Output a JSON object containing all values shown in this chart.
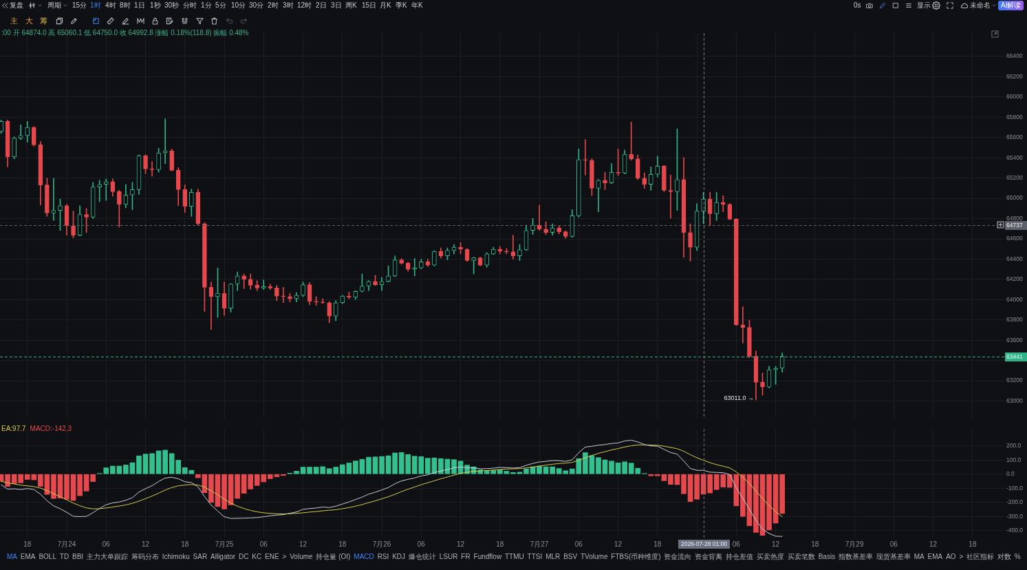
{
  "chart_data": [
    {
      "type": "other",
      "annotations": [
        "复盘",
        "周期",
        "15分",
        "1时",
        "4时",
        "8时",
        "1日",
        "1秒",
        "30秒",
        "分时",
        "1分",
        "5分",
        "10分",
        "30分",
        "2时",
        "3时",
        "12时",
        "2日",
        "3日",
        "周K",
        "15日",
        "月K",
        "季K",
        "年K",
        "0s",
        "显示",
        "未命名",
        "AI解读",
        "主",
        "大",
        "筹"
      ]
    },
    {
      "type": "candlestick",
      "x": [
        "2026-07-23T14:00",
        "2026-07-23T15:00",
        "2026-07-23T16:00",
        "2026-07-23T17:00",
        "2026-07-23T18:00",
        "2026-07-23T19:00",
        "2026-07-23T20:00",
        "2026-07-23T21:00",
        "2026-07-23T22:00",
        "2026-07-23T23:00",
        "2026-07-24T00:00",
        "2026-07-24T01:00",
        "2026-07-24T02:00",
        "2026-07-24T03:00",
        "2026-07-24T04:00",
        "2026-07-24T05:00",
        "2026-07-24T06:00",
        "2026-07-24T07:00",
        "2026-07-24T08:00",
        "2026-07-24T09:00",
        "2026-07-24T10:00",
        "2026-07-24T11:00",
        "2026-07-24T12:00",
        "2026-07-24T13:00",
        "2026-07-24T14:00",
        "2026-07-24T15:00",
        "2026-07-24T16:00",
        "2026-07-24T17:00",
        "2026-07-24T18:00",
        "2026-07-24T19:00",
        "2026-07-24T20:00",
        "2026-07-24T21:00",
        "2026-07-24T22:00",
        "2026-07-24T23:00",
        "2026-07-25T00:00",
        "2026-07-25T01:00",
        "2026-07-25T02:00",
        "2026-07-25T03:00",
        "2026-07-25T04:00",
        "2026-07-25T05:00",
        "2026-07-25T06:00",
        "2026-07-25T07:00",
        "2026-07-25T08:00",
        "2026-07-25T09:00",
        "2026-07-25T10:00",
        "2026-07-25T11:00",
        "2026-07-25T12:00",
        "2026-07-25T13:00",
        "2026-07-25T14:00",
        "2026-07-25T15:00",
        "2026-07-25T16:00",
        "2026-07-25T17:00",
        "2026-07-25T18:00",
        "2026-07-25T19:00",
        "2026-07-25T20:00",
        "2026-07-25T21:00",
        "2026-07-25T22:00",
        "2026-07-25T23:00",
        "2026-07-26T00:00",
        "2026-07-26T01:00",
        "2026-07-26T02:00",
        "2026-07-26T03:00",
        "2026-07-26T04:00",
        "2026-07-26T05:00",
        "2026-07-26T06:00",
        "2026-07-26T07:00",
        "2026-07-26T08:00",
        "2026-07-26T09:00",
        "2026-07-26T10:00",
        "2026-07-26T11:00",
        "2026-07-26T12:00",
        "2026-07-26T13:00",
        "2026-07-26T14:00",
        "2026-07-26T15:00",
        "2026-07-26T16:00",
        "2026-07-26T17:00",
        "2026-07-26T18:00",
        "2026-07-26T19:00",
        "2026-07-26T20:00",
        "2026-07-26T21:00",
        "2026-07-26T22:00",
        "2026-07-26T23:00",
        "2026-07-27T00:00",
        "2026-07-27T01:00",
        "2026-07-27T02:00",
        "2026-07-27T03:00",
        "2026-07-27T04:00",
        "2026-07-27T05:00",
        "2026-07-27T06:00",
        "2026-07-27T07:00",
        "2026-07-27T08:00",
        "2026-07-27T09:00",
        "2026-07-27T10:00",
        "2026-07-27T11:00",
        "2026-07-27T12:00",
        "2026-07-27T13:00",
        "2026-07-27T14:00",
        "2026-07-27T15:00",
        "2026-07-27T16:00",
        "2026-07-27T17:00",
        "2026-07-27T18:00",
        "2026-07-27T19:00",
        "2026-07-27T20:00",
        "2026-07-27T21:00",
        "2026-07-27T22:00",
        "2026-07-27T23:00",
        "2026-07-28T00:00",
        "2026-07-28T01:00",
        "2026-07-28T02:00",
        "2026-07-28T03:00",
        "2026-07-28T04:00",
        "2026-07-28T05:00",
        "2026-07-28T06:00",
        "2026-07-28T07:00",
        "2026-07-28T08:00",
        "2026-07-28T09:00",
        "2026-07-28T10:00",
        "2026-07-28T11:00",
        "2026-07-28T12:00",
        "2026-07-28T13:00"
      ],
      "ohlc": [
        [
          65660,
          65772,
          65640,
          65759
        ],
        [
          65759,
          65772,
          65310,
          65409
        ],
        [
          65409,
          65607,
          65389,
          65594
        ],
        [
          65594,
          65726,
          65580,
          65620
        ],
        [
          65620,
          65759,
          65554,
          65700
        ],
        [
          65700,
          65710,
          65515,
          65528
        ],
        [
          65528,
          65561,
          64934,
          65132
        ],
        [
          65132,
          65198,
          64822,
          64855
        ],
        [
          64855,
          65198,
          64782,
          64881
        ],
        [
          64881,
          64993,
          64683,
          64927
        ],
        [
          64927,
          64940,
          64637,
          64729
        ],
        [
          64729,
          64874,
          64610,
          64637
        ],
        [
          64637,
          64927,
          64630,
          64841
        ],
        [
          64841,
          64901,
          64663,
          64815
        ],
        [
          64815,
          65158,
          64800,
          65112
        ],
        [
          65112,
          65178,
          64967,
          65138
        ],
        [
          65138,
          65191,
          64980,
          65165
        ],
        [
          65165,
          65191,
          65020,
          65066
        ],
        [
          65066,
          65080,
          64716,
          64940
        ],
        [
          64940,
          65138,
          64907,
          65033
        ],
        [
          65033,
          65158,
          64888,
          65086
        ],
        [
          65086,
          65429,
          65039,
          65422
        ],
        [
          65422,
          65430,
          65244,
          65290
        ],
        [
          65290,
          65363,
          65218,
          65283
        ],
        [
          65283,
          65495,
          65257,
          65449
        ],
        [
          65449,
          65785,
          65343,
          65468
        ],
        [
          65468,
          65488,
          65270,
          65277
        ],
        [
          65277,
          65303,
          64927,
          65086
        ],
        [
          65086,
          65132,
          64861,
          64921
        ],
        [
          64921,
          65092,
          64822,
          65059
        ],
        [
          65059,
          65092,
          64736,
          64749
        ],
        [
          64749,
          64760,
          63884,
          64122
        ],
        [
          64122,
          64175,
          63706,
          64030
        ],
        [
          64030,
          64313,
          63825,
          64063
        ],
        [
          64063,
          64175,
          63845,
          63917
        ],
        [
          63917,
          64160,
          63878,
          64155
        ],
        [
          64155,
          64274,
          64089,
          64234
        ],
        [
          64234,
          64254,
          64109,
          64201
        ],
        [
          64201,
          64254,
          64102,
          64142
        ],
        [
          64142,
          64188,
          64089,
          64115
        ],
        [
          64115,
          64195,
          64102,
          64129
        ],
        [
          64129,
          64155,
          64102,
          64115
        ],
        [
          64115,
          64142,
          63990,
          64036
        ],
        [
          64036,
          64122,
          63970,
          64030
        ],
        [
          64030,
          64063,
          63977,
          64010
        ],
        [
          64010,
          64069,
          63977,
          64043
        ],
        [
          64043,
          64175,
          64030,
          64148
        ],
        [
          64148,
          64168,
          63950,
          63983
        ],
        [
          63983,
          64030,
          63944,
          63977
        ],
        [
          63977,
          64010,
          63964,
          63970
        ],
        [
          63970,
          63980,
          63772,
          63838
        ],
        [
          63838,
          63990,
          63792,
          63970
        ],
        [
          63970,
          64043,
          63960,
          64036
        ],
        [
          64036,
          64076,
          64010,
          64023
        ],
        [
          64023,
          64089,
          64003,
          64082
        ],
        [
          64082,
          64254,
          64075,
          64135
        ],
        [
          64135,
          64188,
          64089,
          64181
        ],
        [
          64181,
          64241,
          64140,
          64148
        ],
        [
          64148,
          64221,
          64089,
          64181
        ],
        [
          64181,
          64333,
          64175,
          64234
        ],
        [
          64234,
          64432,
          64225,
          64393
        ],
        [
          64393,
          64406,
          64350,
          64360
        ],
        [
          64360,
          64370,
          64280,
          64300
        ],
        [
          64300,
          64406,
          64234,
          64313
        ],
        [
          64313,
          64399,
          64305,
          64373
        ],
        [
          64373,
          64399,
          64327,
          64340
        ],
        [
          64340,
          64485,
          64333,
          64478
        ],
        [
          64478,
          64511,
          64412,
          64432
        ],
        [
          64432,
          64511,
          64393,
          64485
        ],
        [
          64485,
          64544,
          64452,
          64518
        ],
        [
          64518,
          64564,
          64452,
          64498
        ],
        [
          64498,
          64505,
          64379,
          64386
        ],
        [
          64386,
          64419,
          64254,
          64412
        ],
        [
          64412,
          64420,
          64333,
          64340
        ],
        [
          64340,
          64465,
          64320,
          64452
        ],
        [
          64452,
          64518,
          64445,
          64498
        ],
        [
          64498,
          64525,
          64452,
          64478
        ],
        [
          64478,
          64505,
          64452,
          64472
        ],
        [
          64472,
          64637,
          64399,
          64432
        ],
        [
          64432,
          64544,
          64386,
          64492
        ],
        [
          64492,
          64736,
          64485,
          64683
        ],
        [
          64683,
          64802,
          64643,
          64736
        ],
        [
          64736,
          64934,
          64683,
          64696
        ],
        [
          64696,
          64769,
          64643,
          64663
        ],
        [
          64663,
          64749,
          64637,
          64709
        ],
        [
          64709,
          64729,
          64650,
          64670
        ],
        [
          64670,
          64680,
          64604,
          64624
        ],
        [
          64624,
          64888,
          64615,
          64828
        ],
        [
          64828,
          65488,
          64815,
          65383
        ],
        [
          65383,
          65581,
          65231,
          65376
        ],
        [
          65376,
          65390,
          65026,
          65099
        ],
        [
          65099,
          65185,
          64868,
          65178
        ],
        [
          65178,
          65257,
          65086,
          65152
        ],
        [
          65152,
          65343,
          65145,
          65257
        ],
        [
          65257,
          65488,
          65224,
          65250
        ],
        [
          65250,
          65475,
          65240,
          65435
        ],
        [
          65435,
          65752,
          65376,
          65389
        ],
        [
          65389,
          65429,
          65185,
          65198
        ],
        [
          65198,
          65251,
          65099,
          65138
        ],
        [
          65138,
          65310,
          65079,
          65237
        ],
        [
          65237,
          65416,
          65211,
          65317
        ],
        [
          65317,
          65325,
          65066,
          65079
        ],
        [
          65079,
          65231,
          64802,
          65066
        ],
        [
          65066,
          65686,
          64881,
          65185
        ],
        [
          65185,
          65402,
          64419,
          64663
        ],
        [
          64663,
          64749,
          64379,
          64518
        ],
        [
          64518,
          64947,
          64485,
          64874
        ],
        [
          64874.0,
          65060.1,
          64750.0,
          64992.8
        ],
        [
          64992.8,
          65059,
          64729,
          64848
        ],
        [
          64848,
          65059,
          64782,
          64960
        ],
        [
          64960,
          65026,
          64868,
          64940
        ],
        [
          64940,
          64950,
          64789,
          64795
        ],
        [
          64795,
          64800,
          63746,
          63752
        ],
        [
          63752,
          63931,
          63574,
          63726
        ],
        [
          63726,
          63799,
          63430,
          63442
        ],
        [
          63442,
          63495,
          63011,
          63185
        ],
        [
          63185,
          63277,
          63059,
          63139
        ],
        [
          63139,
          63343,
          63130,
          63310
        ],
        [
          63310,
          63343,
          63165,
          63323
        ],
        [
          63323,
          63475,
          63284,
          63441
        ]
      ],
      "colors": [
        "#2fb389",
        "#e5484d",
        "#2fb389",
        "#2fb389",
        "#2fb389",
        "#e5484d",
        "#e5484d",
        "#e5484d",
        "#2fb389",
        "#2fb389",
        "#e5484d",
        "#e5484d",
        "#2fb389",
        "#e5484d",
        "#2fb389",
        "#2fb389",
        "#2fb389",
        "#e5484d",
        "#e5484d",
        "#2fb389",
        "#2fb389",
        "#2fb389",
        "#e5484d",
        "#e5484d",
        "#2fb389",
        "#2fb389",
        "#e5484d",
        "#e5484d",
        "#e5484d",
        "#2fb389",
        "#e5484d",
        "#e5484d",
        "#e5484d",
        "#2fb389",
        "#e5484d",
        "#2fb389",
        "#2fb389",
        "#e5484d",
        "#e5484d",
        "#e5484d",
        "#2fb389",
        "#e5484d",
        "#e5484d",
        "#e5484d",
        "#e5484d",
        "#2fb389",
        "#2fb389",
        "#e5484d",
        "#e5484d",
        "#e5484d",
        "#e5484d",
        "#2fb389",
        "#2fb389",
        "#e5484d",
        "#2fb389",
        "#2fb389",
        "#2fb389",
        "#e5484d",
        "#2fb389",
        "#2fb389",
        "#2fb389",
        "#e5484d",
        "#e5484d",
        "#2fb389",
        "#2fb389",
        "#e5484d",
        "#2fb389",
        "#e5484d",
        "#2fb389",
        "#2fb389",
        "#e5484d",
        "#e5484d",
        "#2fb389",
        "#e5484d",
        "#2fb389",
        "#2fb389",
        "#e5484d",
        "#e5484d",
        "#e5484d",
        "#2fb389",
        "#2fb389",
        "#2fb389",
        "#e5484d",
        "#e5484d",
        "#2fb389",
        "#e5484d",
        "#e5484d",
        "#2fb389",
        "#2fb389",
        "#e5484d",
        "#e5484d",
        "#2fb389",
        "#e5484d",
        "#2fb389",
        "#e5484d",
        "#2fb389",
        "#e5484d",
        "#e5484d",
        "#e5484d",
        "#2fb389",
        "#2fb389",
        "#e5484d",
        "#e5484d",
        "#2fb389",
        "#e5484d",
        "#e5484d",
        "#2fb389",
        "#2fb389",
        "#e5484d",
        "#2fb389",
        "#e5484d",
        "#e5484d",
        "#e5484d",
        "#e5484d",
        "#e5484d",
        "#e5484d",
        "#e5484d",
        "#2fb389",
        "#2fb389",
        "#2fb389"
      ],
      "xlim": [
        "2026-07-23T13:50",
        "2026-07-29T22:50"
      ],
      "xticks": [
        {
          "value": "2026-07-23T18:00",
          "label": null
        },
        {
          "value": "2026-07-24T00:00",
          "label": null
        },
        {
          "value": "2026-07-24T06:00",
          "label": null
        },
        {
          "value": "2026-07-24T12:00",
          "label": null
        },
        {
          "value": "2026-07-24T18:00",
          "label": null
        },
        {
          "value": "2026-07-25T00:00",
          "label": null
        },
        {
          "value": "2026-07-25T06:00",
          "label": null
        },
        {
          "value": "2026-07-25T12:00",
          "label": null
        },
        {
          "value": "2026-07-25T18:00",
          "label": null
        },
        {
          "value": "2026-07-26T00:00",
          "label": null
        },
        {
          "value": "2026-07-26T06:00",
          "label": null
        },
        {
          "value": "2026-07-26T12:00",
          "label": null
        },
        {
          "value": "2026-07-26T18:00",
          "label": null
        },
        {
          "value": "2026-07-27T00:00",
          "label": null
        },
        {
          "value": "2026-07-27T06:00",
          "label": null
        },
        {
          "value": "2026-07-27T12:00",
          "label": null
        },
        {
          "value": "2026-07-27T18:00",
          "label": null
        },
        {
          "value": "2026-07-28T00:00",
          "label": null
        },
        {
          "value": "2026-07-28T06:00",
          "label": null
        },
        {
          "value": "2026-07-28T12:00",
          "label": null
        },
        {
          "value": "2026-07-28T18:00",
          "label": null
        },
        {
          "value": "2026-07-29T00:00",
          "label": null
        },
        {
          "value": "2026-07-29T06:00",
          "label": null
        },
        {
          "value": "2026-07-29T12:00",
          "label": null
        },
        {
          "value": "2026-07-29T18:00",
          "label": null
        }
      ],
      "ylim": [
        62835,
        66630
      ],
      "yticks": [
        63000,
        63200,
        {
          "value": 63400,
          "label": null
        },
        63600,
        63800,
        64000,
        64200,
        64400,
        64600,
        64800,
        65000,
        65200,
        65400,
        65600,
        65800,
        66000,
        66200,
        66400
      ],
      "grid": true,
      "tick_labels": "y",
      "ref_lines": [
        {
          "axis": "y",
          "value": 64737,
          "label": "64737",
          "color": "#5d616b",
          "line_style": "dashed"
        },
        {
          "axis": "y",
          "value": 63441,
          "label": "63441",
          "color": "#2fb389",
          "line_style": "dashed"
        },
        {
          "axis": "x",
          "value": "2026-07-28T01:00",
          "color": "#7d8089",
          "line_style": "dashed"
        }
      ],
      "annotations": [
        ":00 开 64874.0 高 65060.1 低 64750.0 收 64992.8 涨幅 0.18%(118.8) 振幅 0.48%",
        {
          "text": "63011.0 →",
          "x": "2026-07-28T09:00",
          "y": 63011
        }
      ]
    },
    {
      "type": "bar",
      "x": [
        "2026-07-23T14:00",
        "2026-07-23T15:00",
        "2026-07-23T16:00",
        "2026-07-23T17:00",
        "2026-07-23T18:00",
        "2026-07-23T19:00",
        "2026-07-23T20:00",
        "2026-07-23T21:00",
        "2026-07-23T22:00",
        "2026-07-23T23:00",
        "2026-07-24T00:00",
        "2026-07-24T01:00",
        "2026-07-24T02:00",
        "2026-07-24T03:00",
        "2026-07-24T04:00",
        "2026-07-24T05:00",
        "2026-07-24T06:00",
        "2026-07-24T07:00",
        "2026-07-24T08:00",
        "2026-07-24T09:00",
        "2026-07-24T10:00",
        "2026-07-24T11:00",
        "2026-07-24T12:00",
        "2026-07-24T13:00",
        "2026-07-24T14:00",
        "2026-07-24T15:00",
        "2026-07-24T16:00",
        "2026-07-24T17:00",
        "2026-07-24T18:00",
        "2026-07-24T19:00",
        "2026-07-24T20:00",
        "2026-07-24T21:00",
        "2026-07-24T22:00",
        "2026-07-24T23:00",
        "2026-07-25T00:00",
        "2026-07-25T01:00",
        "2026-07-25T02:00",
        "2026-07-25T03:00",
        "2026-07-25T04:00",
        "2026-07-25T05:00",
        "2026-07-25T06:00",
        "2026-07-25T07:00",
        "2026-07-25T08:00",
        "2026-07-25T09:00",
        "2026-07-25T10:00",
        "2026-07-25T11:00",
        "2026-07-25T12:00",
        "2026-07-25T13:00",
        "2026-07-25T14:00",
        "2026-07-25T15:00",
        "2026-07-25T16:00",
        "2026-07-25T17:00",
        "2026-07-25T18:00",
        "2026-07-25T19:00",
        "2026-07-25T20:00",
        "2026-07-25T21:00",
        "2026-07-25T22:00",
        "2026-07-25T23:00",
        "2026-07-26T00:00",
        "2026-07-26T01:00",
        "2026-07-26T02:00",
        "2026-07-26T03:00",
        "2026-07-26T04:00",
        "2026-07-26T05:00",
        "2026-07-26T06:00",
        "2026-07-26T07:00",
        "2026-07-26T08:00",
        "2026-07-26T09:00",
        "2026-07-26T10:00",
        "2026-07-26T11:00",
        "2026-07-26T12:00",
        "2026-07-26T13:00",
        "2026-07-26T14:00",
        "2026-07-26T15:00",
        "2026-07-26T16:00",
        "2026-07-26T17:00",
        "2026-07-26T18:00",
        "2026-07-26T19:00",
        "2026-07-26T20:00",
        "2026-07-26T21:00",
        "2026-07-26T22:00",
        "2026-07-26T23:00",
        "2026-07-27T00:00",
        "2026-07-27T01:00",
        "2026-07-27T02:00",
        "2026-07-27T03:00",
        "2026-07-27T04:00",
        "2026-07-27T05:00",
        "2026-07-27T06:00",
        "2026-07-27T07:00",
        "2026-07-27T08:00",
        "2026-07-27T09:00",
        "2026-07-27T10:00",
        "2026-07-27T11:00",
        "2026-07-27T12:00",
        "2026-07-27T13:00",
        "2026-07-27T14:00",
        "2026-07-27T15:00",
        "2026-07-27T16:00",
        "2026-07-27T17:00",
        "2026-07-27T18:00",
        "2026-07-27T19:00",
        "2026-07-27T20:00",
        "2026-07-27T21:00",
        "2026-07-27T22:00",
        "2026-07-27T23:00",
        "2026-07-28T00:00",
        "2026-07-28T01:00",
        "2026-07-28T02:00",
        "2026-07-28T03:00",
        "2026-07-28T04:00",
        "2026-07-28T05:00",
        "2026-07-28T06:00",
        "2026-07-28T07:00",
        "2026-07-28T08:00",
        "2026-07-28T09:00",
        "2026-07-28T10:00",
        "2026-07-28T11:00",
        "2026-07-28T12:00",
        "2026-07-28T13:00"
      ],
      "series": [
        {
          "type": "bar",
          "colors": [
            "#e5484d",
            "#e5484d",
            "#e5484d",
            "#e5484d",
            "#e5484d",
            "#e5484d",
            "#e5484d",
            "#e5484d",
            "#e5484d",
            "#e5484d",
            "#e5484d",
            "#e5484d",
            "#e5484d",
            "#e5484d",
            "#e5484d",
            "#34c08e",
            "#34c08e",
            "#34c08e",
            "#34c08e",
            "#34c08e",
            "#34c08e",
            "#34c08e",
            "#34c08e",
            "#34c08e",
            "#34c08e",
            "#34c08e",
            "#34c08e",
            "#34c08e",
            "#34c08e",
            "#34c08e",
            "#e5484d",
            "#e5484d",
            "#e5484d",
            "#e5484d",
            "#e5484d",
            "#e5484d",
            "#e5484d",
            "#e5484d",
            "#e5484d",
            "#e5484d",
            "#e5484d",
            "#e5484d",
            "#e5484d",
            "#e5484d",
            "#34c08e",
            "#34c08e",
            "#34c08e",
            "#34c08e",
            "#34c08e",
            "#34c08e",
            "#34c08e",
            "#34c08e",
            "#34c08e",
            "#34c08e",
            "#34c08e",
            "#34c08e",
            "#34c08e",
            "#34c08e",
            "#34c08e",
            "#34c08e",
            "#34c08e",
            "#34c08e",
            "#34c08e",
            "#34c08e",
            "#34c08e",
            "#34c08e",
            "#34c08e",
            "#34c08e",
            "#34c08e",
            "#34c08e",
            "#34c08e",
            "#34c08e",
            "#34c08e",
            "#34c08e",
            "#34c08e",
            "#34c08e",
            "#34c08e",
            "#34c08e",
            "#34c08e",
            "#34c08e",
            "#34c08e",
            "#34c08e",
            "#34c08e",
            "#34c08e",
            "#34c08e",
            "#34c08e",
            "#34c08e",
            "#34c08e",
            "#34c08e",
            "#34c08e",
            "#34c08e",
            "#34c08e",
            "#34c08e",
            "#34c08e",
            "#34c08e",
            "#34c08e",
            "#34c08e",
            "#34c08e",
            "#34c08e",
            "#e5484d",
            "#e5484d",
            "#e5484d",
            "#e5484d",
            "#e5484d",
            "#e5484d",
            "#e5484d",
            "#e5484d",
            "#e5484d",
            "#e5484d",
            "#e5484d",
            "#e5484d",
            "#e5484d",
            "#e5484d",
            "#e5484d",
            "#e5484d",
            "#e5484d",
            "#e5484d",
            "#e5484d",
            "#e5484d",
            "#e5484d"
          ],
          "values": [
            -50,
            -87,
            -67,
            -62,
            -38,
            -41,
            -87,
            -144,
            -173,
            -170,
            -178,
            -187,
            -153,
            -120,
            -53,
            5,
            45,
            57,
            57,
            65,
            81,
            129,
            142,
            146,
            165,
            170,
            146,
            99,
            46,
            27,
            -26,
            -132,
            -201,
            -230,
            -247,
            -218,
            -172,
            -136,
            -106,
            -81,
            -55,
            -33,
            -19,
            -10,
            7,
            21,
            50,
            50,
            50,
            53,
            39,
            50,
            67,
            79,
            93,
            105,
            120,
            122,
            125,
            130,
            150,
            153,
            139,
            127,
            124,
            113,
            115,
            110,
            106,
            103,
            92,
            64,
            52,
            30,
            26,
            26,
            30,
            21,
            12,
            14,
            37,
            52,
            57,
            52,
            52,
            40,
            24,
            37,
            110,
            152,
            131,
            117,
            101,
            92,
            80,
            87,
            78,
            42,
            5,
            -12,
            -12,
            -47,
            -73,
            -75,
            -139,
            -195,
            -178,
            -142.3,
            -134,
            -110,
            -92,
            -94,
            -225,
            -300,
            -366,
            -413,
            -434,
            -395,
            -347,
            -279
          ]
        },
        {
          "type": "line",
          "color": "#c9ccd6",
          "values": [
            -76,
            -106,
            -104,
            -109,
            -102,
            -109,
            -142,
            -189,
            -225,
            -245,
            -271,
            -299,
            -301,
            -299,
            -273,
            -243,
            -217,
            -204,
            -197,
            -185,
            -167,
            -127,
            -103,
            -82,
            -52,
            -28,
            -22,
            -33,
            -54,
            -60,
            -90,
            -159,
            -219,
            -262,
            -302,
            -314,
            -313,
            -312,
            -310,
            -308,
            -302,
            -295,
            -290,
            -287,
            -277,
            -268,
            -249,
            -244,
            -240,
            -233,
            -237,
            -227,
            -212,
            -197,
            -180,
            -163,
            -142,
            -128,
            -112,
            -95,
            -68,
            -48,
            -37,
            -27,
            -13,
            -5,
            11,
            22,
            33,
            45,
            51,
            45,
            45,
            38,
            39,
            42,
            48,
            46,
            43,
            46,
            62,
            76,
            86,
            90,
            96,
            95,
            90,
            101,
            152,
            192,
            197,
            205,
            210,
            217,
            221,
            235,
            240,
            228,
            210,
            200,
            198,
            175,
            153,
            142,
            93,
            40,
            27,
            27,
            14,
            12,
            10,
            -3,
            -97,
            -172,
            -250,
            -326,
            -390,
            -420,
            -440,
            -441
          ]
        },
        {
          "type": "line",
          "color": "#d6cc48",
          "values": [
            -51,
            -62,
            -70,
            -78,
            -83,
            -88,
            -99,
            -117,
            -139,
            -160,
            -182,
            -205,
            -224,
            -239,
            -246,
            -245,
            -240,
            -233,
            -226,
            -218,
            -207,
            -191,
            -174,
            -155,
            -135,
            -113,
            -95,
            -83,
            -77,
            -74,
            -77,
            -93,
            -118,
            -147,
            -178,
            -205,
            -227,
            -244,
            -257,
            -267,
            -274,
            -278,
            -281,
            -282,
            -281,
            -278,
            -274,
            -269,
            -265,
            -260,
            -256,
            -252,
            -245,
            -237,
            -227,
            -216,
            -202,
            -189,
            -175,
            -160,
            -143,
            -124,
            -107,
            -91,
            -75,
            -61,
            -47,
            -33,
            -20,
            -7,
            5,
            13,
            19,
            23,
            26,
            29,
            33,
            36,
            37,
            39,
            44,
            50,
            57,
            64,
            70,
            75,
            78,
            83,
            97,
            116,
            132,
            147,
            159,
            171,
            181,
            192,
            201,
            207,
            207,
            206,
            204,
            198,
            189,
            180,
            162,
            138,
            116,
            97.7,
            81,
            67,
            56,
            44,
            16,
            -22,
            -67,
            -119,
            -173,
            -223,
            -266,
            -301
          ]
        }
      ],
      "xlim": [
        "2026-07-23T13:50",
        "2026-07-29T22:50"
      ],
      "xticks": [
        {
          "value": "2026-07-23T18:00",
          "label": "18"
        },
        {
          "value": "2026-07-24T00:00",
          "label": "7月24"
        },
        {
          "value": "2026-07-24T06:00",
          "label": "06"
        },
        {
          "value": "2026-07-24T12:00",
          "label": "12"
        },
        {
          "value": "2026-07-24T18:00",
          "label": "18"
        },
        {
          "value": "2026-07-25T00:00",
          "label": "7月25"
        },
        {
          "value": "2026-07-25T06:00",
          "label": "06"
        },
        {
          "value": "2026-07-25T12:00",
          "label": "12"
        },
        {
          "value": "2026-07-25T18:00",
          "label": "18"
        },
        {
          "value": "2026-07-26T00:00",
          "label": "7月26"
        },
        {
          "value": "2026-07-26T06:00",
          "label": "06"
        },
        {
          "value": "2026-07-26T12:00",
          "label": "12"
        },
        {
          "value": "2026-07-26T18:00",
          "label": "18"
        },
        {
          "value": "2026-07-27T00:00",
          "label": "7月27"
        },
        {
          "value": "2026-07-27T06:00",
          "label": "06"
        },
        {
          "value": "2026-07-27T12:00",
          "label": "12"
        },
        {
          "value": "2026-07-27T18:00",
          "label": "18"
        },
        {
          "value": "2026-07-28T00:00",
          "label": null
        },
        {
          "value": "2026-07-28T06:00",
          "label": "06"
        },
        {
          "value": "2026-07-28T12:00",
          "label": "12"
        },
        {
          "value": "2026-07-28T18:00",
          "label": "18"
        },
        {
          "value": "2026-07-29T00:00",
          "label": "7月29"
        },
        {
          "value": "2026-07-29T06:00",
          "label": "06"
        },
        {
          "value": "2026-07-29T12:00",
          "label": "12"
        },
        {
          "value": "2026-07-29T18:00",
          "label": "18"
        }
      ],
      "ylim": [
        -450,
        320
      ],
      "yticks": [
        {
          "value": -400,
          "label": "-400.0"
        },
        {
          "value": -300,
          "label": "-300.0"
        },
        {
          "value": -200,
          "label": "-200.0"
        },
        {
          "value": -100,
          "label": "-100.0"
        },
        {
          "value": 0,
          "label": "0.0"
        },
        {
          "value": 100,
          "label": "100.0"
        },
        {
          "value": 200,
          "label": "200.0"
        }
      ],
      "grid": true,
      "ref_lines": [
        {
          "axis": "x",
          "value": "2026-07-28T01:00",
          "label": "2026-07-28 01:00",
          "color": "#6b7080",
          "line_style": "dashed"
        }
      ],
      "annotations": [
        "EA:97.7",
        "MACD:-142.3"
      ]
    },
    {
      "type": "other",
      "annotations": [
        "MA",
        "EMA",
        "BOLL",
        "TD",
        "BBI",
        "主力大单跟踪",
        "筹码分布",
        "Ichimoku",
        "SAR",
        "Alligator",
        "DC",
        "KC",
        "ENE",
        ">",
        "Volume",
        "持仓量 (OI)",
        "MACD",
        "RSI",
        "KDJ",
        "爆仓统计",
        "LSUR",
        "FR",
        "Fundflow",
        "TTMU",
        "TTSI",
        "MLR",
        "BSV",
        "TVolume",
        "FTBS(币种维度)",
        "资金流向",
        "资金背离",
        "持仓差值",
        "买卖热度",
        "买卖笔数",
        "Basis",
        "指数基差率",
        "现货基差率",
        "MA",
        "EMA",
        "AO",
        ">",
        "社区指标",
        "对数",
        "%"
      ]
    }
  ]
}
